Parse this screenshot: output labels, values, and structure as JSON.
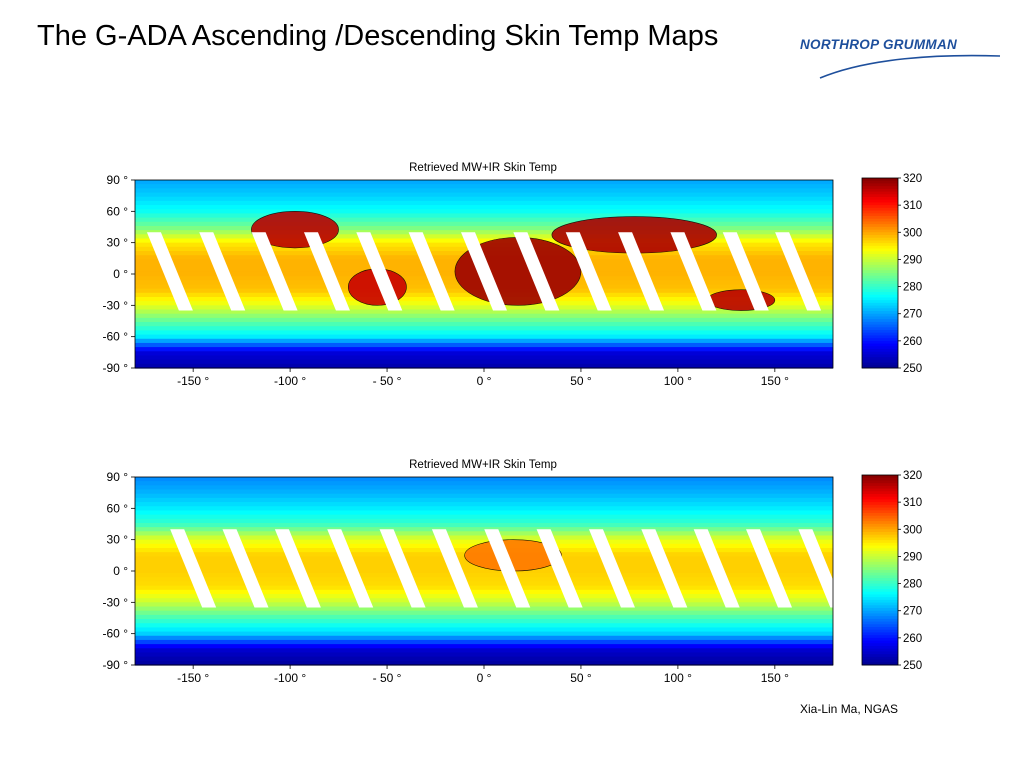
{
  "slide": {
    "title": "The G-ADA Ascending /Descending Skin Temp Maps",
    "logo_text": "NORTHROP GRUMMAN",
    "credit": "Xia-Lin Ma, NGAS"
  },
  "colors": {
    "logo_blue": "#1e4f9c",
    "colormap": [
      "#00008f",
      "#0000ff",
      "#0080ff",
      "#00ffff",
      "#80ff80",
      "#ffff00",
      "#ff8000",
      "#ff0000",
      "#800000"
    ]
  },
  "chart_data": [
    {
      "type": "heatmap",
      "title": "Retrieved MW+IR Skin Temp",
      "xlabel": "",
      "ylabel": "",
      "xlim": [
        -180,
        180
      ],
      "ylim": [
        -90,
        90
      ],
      "x_ticks": [
        -150,
        -100,
        -50,
        0,
        50,
        100,
        150
      ],
      "x_tick_labels": [
        "-150 °",
        "-100 °",
        "- 50 °",
        "0 °",
        "50 °",
        "100 °",
        "150 °"
      ],
      "y_ticks": [
        90,
        60,
        30,
        0,
        -30,
        -60,
        -90
      ],
      "y_tick_labels": [
        "90 °",
        "60 °",
        "30 °",
        "0 °",
        "-30 °",
        "-60 °",
        "-90 °"
      ],
      "colorbar": {
        "min": 250,
        "max": 320,
        "ticks": [
          320,
          310,
          300,
          290,
          280,
          270,
          260,
          250
        ]
      },
      "latitude_profile": {
        "lat": [
          90,
          75,
          60,
          45,
          30,
          15,
          0,
          -15,
          -30,
          -45,
          -60,
          -75,
          -90
        ],
        "skin_temp_K": [
          270,
          273,
          277,
          284,
          295,
          299,
          299,
          298,
          292,
          283,
          275,
          256,
          252
        ]
      },
      "hot_land_regions": [
        {
          "lon": [
            -120,
            -75
          ],
          "lat": [
            25,
            60
          ],
          "temp_K": 316
        },
        {
          "lon": [
            -70,
            -40
          ],
          "lat": [
            -30,
            5
          ],
          "temp_K": 315
        },
        {
          "lon": [
            -15,
            50
          ],
          "lat": [
            -30,
            35
          ],
          "temp_K": 318
        },
        {
          "lon": [
            35,
            120
          ],
          "lat": [
            20,
            55
          ],
          "temp_K": 317
        },
        {
          "lon": [
            115,
            150
          ],
          "lat": [
            -35,
            -15
          ],
          "temp_K": 316
        }
      ],
      "swath_gaps_equator_lon": [
        -162,
        -135,
        -108,
        -81,
        -54,
        -27,
        0,
        27,
        54,
        81,
        108,
        135,
        162
      ]
    },
    {
      "type": "heatmap",
      "title": "Retrieved MW+IR Skin Temp",
      "xlabel": "",
      "ylabel": "",
      "xlim": [
        -180,
        180
      ],
      "ylim": [
        -90,
        90
      ],
      "x_ticks": [
        -150,
        -100,
        -50,
        0,
        50,
        100,
        150
      ],
      "x_tick_labels": [
        "-150 °",
        "-100 °",
        "- 50 °",
        "0 °",
        "50 °",
        "100 °",
        "150 °"
      ],
      "y_ticks": [
        90,
        60,
        30,
        0,
        -30,
        -60,
        -90
      ],
      "y_tick_labels": [
        "90 °",
        "60 °",
        "30 °",
        "0 °",
        "-30 °",
        "-60 °",
        "-90 °"
      ],
      "colorbar": {
        "min": 250,
        "max": 320,
        "ticks": [
          320,
          310,
          300,
          290,
          280,
          270,
          260,
          250
        ]
      },
      "latitude_profile": {
        "lat": [
          90,
          75,
          60,
          45,
          30,
          15,
          0,
          -15,
          -30,
          -45,
          -60,
          -75,
          -90
        ],
        "skin_temp_K": [
          268,
          271,
          275,
          280,
          292,
          297,
          297,
          296,
          290,
          281,
          273,
          255,
          251
        ]
      },
      "hot_land_regions": [
        {
          "lon": [
            -10,
            40
          ],
          "lat": [
            0,
            30
          ],
          "temp_K": 303
        }
      ],
      "swath_gaps_equator_lon": [
        -150,
        -123,
        -96,
        -69,
        -42,
        -15,
        12,
        39,
        66,
        93,
        120,
        147,
        174
      ]
    }
  ]
}
